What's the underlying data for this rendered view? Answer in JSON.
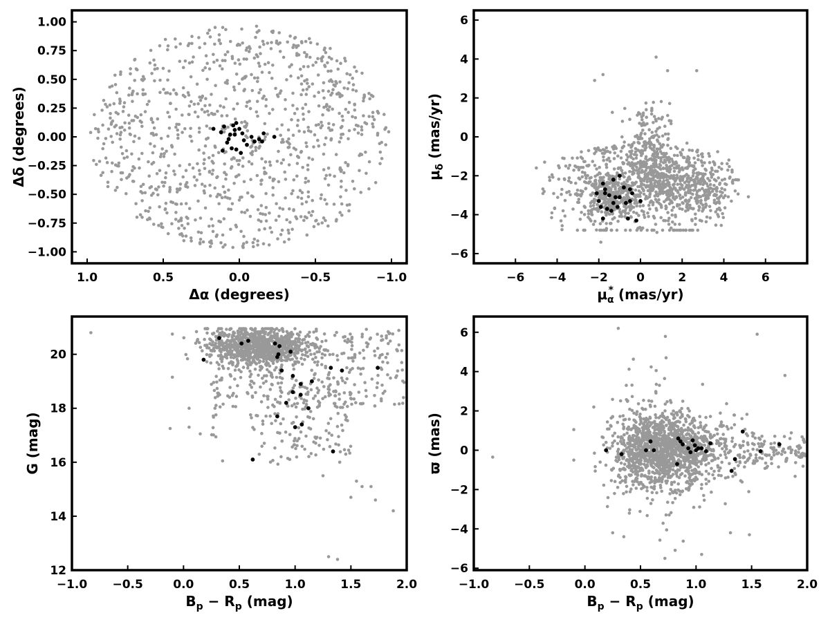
{
  "colors": {
    "field_stars": "#999999",
    "members": "#000000",
    "axes": "#000000"
  },
  "chart_data": [
    {
      "type": "scatter",
      "xlabel": "Δα (degrees)",
      "ylabel": "Δδ (degrees)",
      "xlim": [
        1.1,
        -1.1
      ],
      "ylim": [
        -1.1,
        1.1
      ],
      "x_inverted": true,
      "xticks": [
        "1.0",
        "0.5",
        "0.0",
        "−0.5",
        "−1.0"
      ],
      "xtick_values": [
        1.0,
        0.5,
        0.0,
        -0.5,
        -1.0
      ],
      "yticks": [
        "1.00",
        "0.75",
        "0.50",
        "0.25",
        "0.00",
        "−0.25",
        "−0.50",
        "−0.75",
        "−1.00"
      ],
      "ytick_values": [
        1.0,
        0.75,
        0.5,
        0.25,
        0.0,
        -0.25,
        -0.5,
        -0.75,
        -1.0
      ],
      "field_distribution": {
        "shape": "uniform-disk",
        "center": [
          0,
          0
        ],
        "radius": 1.0,
        "approx_count": 1000
      },
      "series": [
        {
          "values": [
            [
              0.02,
              0.12
            ],
            [
              0.03,
              0.06
            ],
            [
              0.06,
              0.02
            ],
            [
              0.1,
              0.09
            ],
            [
              0.12,
              0.04
            ],
            [
              0.07,
              -0.02
            ],
            [
              0.11,
              -0.12
            ],
            [
              0.08,
              -0.05
            ],
            [
              0.05,
              -0.1
            ],
            [
              0.0,
              0.07
            ],
            [
              -0.02,
              0.03
            ],
            [
              -0.03,
              -0.03
            ],
            [
              -0.05,
              -0.07
            ],
            [
              -0.08,
              0.0
            ],
            [
              -0.1,
              -0.04
            ],
            [
              -0.13,
              -0.02
            ],
            [
              -0.16,
              0.03
            ],
            [
              -0.23,
              0.0
            ],
            [
              0.02,
              -0.11
            ],
            [
              -0.01,
              -0.14
            ],
            [
              0.04,
              0.1
            ],
            [
              0.03,
              0.02
            ],
            [
              0.17,
              0.07
            ],
            [
              -0.15,
              -0.04
            ]
          ]
        }
      ]
    },
    {
      "type": "scatter",
      "xlabel": "μα* (mas/yr)",
      "ylabel": "μδ (mas/yr)",
      "xlim": [
        -8,
        8
      ],
      "ylim": [
        -6.5,
        6.5
      ],
      "xticks": [
        "−6",
        "−4",
        "−2",
        "0",
        "2",
        "4",
        "6"
      ],
      "xtick_values": [
        -6,
        -4,
        -2,
        0,
        2,
        4,
        6
      ],
      "yticks": [
        "6",
        "4",
        "2",
        "0",
        "−2",
        "−4",
        "−6"
      ],
      "ytick_values": [
        6,
        4,
        2,
        0,
        -2,
        -4,
        -6
      ],
      "field_distribution": {
        "shape": "clumped-half-disk",
        "center": [
          0,
          -2.5
        ],
        "approx_count": 1300,
        "clumps": [
          [
            -1.5,
            -3.0
          ],
          [
            1.2,
            -2.5
          ],
          [
            3.0,
            -2.8
          ]
        ]
      },
      "series": [
        {
          "values": [
            [
              -1.8,
              -2.4
            ],
            [
              -1.7,
              -2.7
            ],
            [
              -1.3,
              -2.2
            ],
            [
              -1.0,
              -2.0
            ],
            [
              -0.5,
              -2.7
            ],
            [
              -0.4,
              -2.9
            ],
            [
              -1.9,
              -3.6
            ],
            [
              -1.6,
              -3.7
            ],
            [
              -1.2,
              -3.1
            ],
            [
              -1.1,
              -3.6
            ],
            [
              -0.7,
              -3.4
            ],
            [
              -0.5,
              -3.3
            ],
            [
              -1.5,
              -3.0
            ],
            [
              -1.3,
              -3.4
            ],
            [
              -1.8,
              -4.2
            ],
            [
              -0.6,
              -4.2
            ],
            [
              -0.2,
              -4.3
            ],
            [
              0.0,
              -3.3
            ],
            [
              -1.7,
              -2.9
            ],
            [
              -2.0,
              -3.3
            ],
            [
              -0.8,
              -2.6
            ],
            [
              -1.0,
              -3.1
            ],
            [
              -1.4,
              -3.8
            ],
            [
              -2.1,
              -2.9
            ]
          ]
        }
      ]
    },
    {
      "type": "scatter",
      "xlabel": "Bp − Rp (mag)",
      "ylabel": "G (mag)",
      "xlim": [
        -1.0,
        2.0
      ],
      "ylim": [
        12,
        21.4
      ],
      "xticks": [
        "−1.0",
        "−0.5",
        "0.0",
        "0.5",
        "1.0",
        "1.5",
        "2.0"
      ],
      "xtick_values": [
        -1.0,
        -0.5,
        0.0,
        0.5,
        1.0,
        1.5,
        2.0
      ],
      "yticks": [
        "20",
        "18",
        "16",
        "14",
        "12"
      ],
      "ytick_values": [
        20,
        18,
        16,
        14,
        12
      ],
      "field_distribution": {
        "shape": "color-magnitude-diagram",
        "approx_count": 1400,
        "dense_region": [
          0.6,
          20.3
        ]
      },
      "series": [
        {
          "values": [
            [
              0.32,
              20.6
            ],
            [
              0.18,
              19.8
            ],
            [
              0.52,
              20.4
            ],
            [
              0.58,
              20.5
            ],
            [
              0.82,
              20.4
            ],
            [
              0.86,
              20.3
            ],
            [
              0.85,
              20.0
            ],
            [
              0.84,
              19.9
            ],
            [
              0.96,
              20.1
            ],
            [
              0.88,
              19.4
            ],
            [
              0.98,
              19.2
            ],
            [
              1.05,
              18.9
            ],
            [
              0.92,
              18.2
            ],
            [
              0.98,
              18.6
            ],
            [
              1.05,
              18.5
            ],
            [
              1.12,
              18.0
            ],
            [
              1.15,
              19.0
            ],
            [
              1.32,
              19.5
            ],
            [
              1.42,
              19.4
            ],
            [
              1.74,
              19.5
            ],
            [
              0.84,
              17.7
            ],
            [
              1.0,
              17.3
            ],
            [
              1.06,
              17.4
            ],
            [
              0.62,
              16.1
            ],
            [
              1.34,
              16.4
            ]
          ]
        }
      ]
    },
    {
      "type": "scatter",
      "xlabel": "Bp − Rp (mag)",
      "ylabel": "ϖ (mas)",
      "xlim": [
        -1.0,
        2.0
      ],
      "ylim": [
        -6.1,
        6.8
      ],
      "xticks": [
        "−1.0",
        "−0.5",
        "0.0",
        "0.5",
        "1.0",
        "1.5",
        "2.0"
      ],
      "xtick_values": [
        -1.0,
        -0.5,
        0.0,
        0.5,
        1.0,
        1.5,
        2.0
      ],
      "yticks": [
        "6",
        "4",
        "2",
        "0",
        "−2",
        "−4",
        "−6"
      ],
      "ytick_values": [
        6,
        4,
        2,
        0,
        -2,
        -4,
        -6
      ],
      "field_distribution": {
        "shape": "horizontal-band",
        "approx_count": 1700,
        "center": [
          0.7,
          0.0
        ]
      },
      "series": [
        {
          "values": [
            [
              0.19,
              0.0
            ],
            [
              0.33,
              -0.2
            ],
            [
              0.55,
              0.0
            ],
            [
              0.59,
              0.45
            ],
            [
              0.62,
              0.0
            ],
            [
              0.83,
              -0.7
            ],
            [
              0.84,
              0.6
            ],
            [
              0.86,
              0.45
            ],
            [
              0.88,
              0.3
            ],
            [
              0.93,
              0.1
            ],
            [
              0.97,
              0.5
            ],
            [
              0.99,
              0.25
            ],
            [
              1.02,
              0.1
            ],
            [
              1.05,
              0.1
            ],
            [
              1.09,
              -0.05
            ],
            [
              1.13,
              0.35
            ],
            [
              1.32,
              -1.05
            ],
            [
              1.35,
              -0.45
            ],
            [
              1.42,
              0.95
            ],
            [
              1.58,
              -0.05
            ],
            [
              1.75,
              0.3
            ],
            [
              0.95,
              -0.1
            ],
            [
              1.0,
              0.0
            ]
          ]
        }
      ]
    }
  ]
}
